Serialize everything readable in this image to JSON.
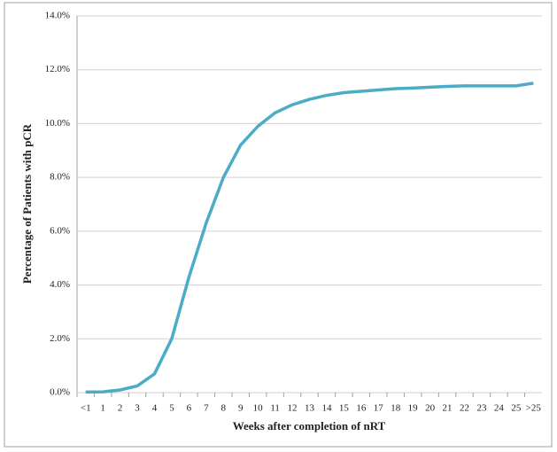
{
  "chart_data": {
    "type": "line",
    "x_label": "Weeks after completion of nRT",
    "y_label": "Percentage of Patients with pCR",
    "categories": [
      "<1",
      "1",
      "2",
      "3",
      "4",
      "5",
      "6",
      "7",
      "8",
      "9",
      "10",
      "11",
      "12",
      "13",
      "14",
      "15",
      "16",
      "17",
      "18",
      "19",
      "20",
      "21",
      "22",
      "23",
      "24",
      "25",
      ">25"
    ],
    "series": [
      {
        "color": "#4bacc6",
        "values": [
          0.02,
          0.03,
          0.1,
          0.25,
          0.7,
          2.0,
          4.3,
          6.3,
          8.0,
          9.2,
          9.9,
          10.4,
          10.7,
          10.9,
          11.05,
          11.15,
          11.2,
          11.25,
          11.3,
          11.32,
          11.35,
          11.38,
          11.4,
          11.4,
          11.4,
          11.4,
          11.5
        ]
      }
    ],
    "ylim": [
      0,
      14
    ],
    "yticks": [
      {
        "value": 0,
        "label": "0.0%"
      },
      {
        "value": 2,
        "label": "2.0%"
      },
      {
        "value": 4,
        "label": "4.0%"
      },
      {
        "value": 6,
        "label": "6.0%"
      },
      {
        "value": 8,
        "label": "8.0%"
      },
      {
        "value": 10,
        "label": "10.0%"
      },
      {
        "value": 12,
        "label": "12.0%"
      },
      {
        "value": 14,
        "label": "14.0%"
      }
    ],
    "grid": true
  }
}
